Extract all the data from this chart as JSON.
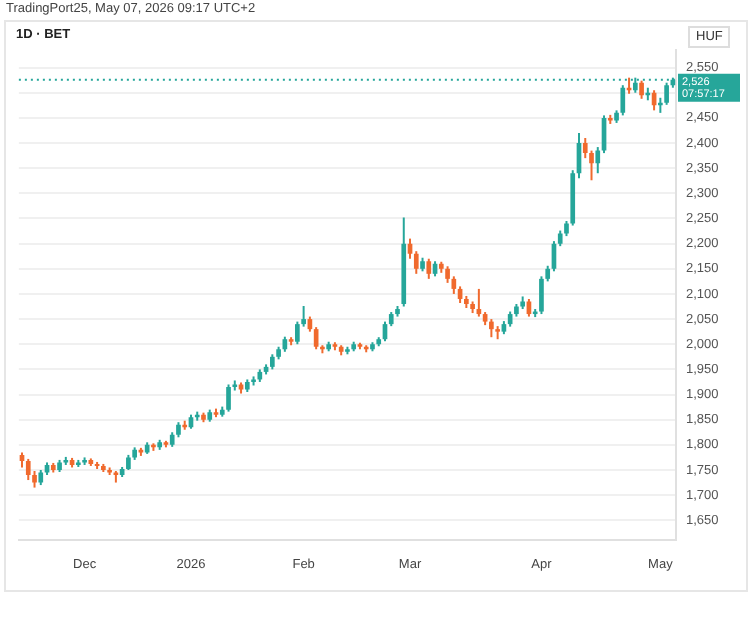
{
  "chart_data": {
    "type": "candlestick",
    "title": "1D · BET",
    "subtitle": "TradingPort25, May 07, 2026 09:17 UTC+2",
    "ylabel": "HUF",
    "annotations": [
      "07:57:17"
    ],
    "categories": [
      null,
      null,
      null,
      null,
      null,
      null,
      null,
      null,
      null,
      null,
      "Dec",
      null,
      null,
      null,
      null,
      null,
      null,
      null,
      null,
      null,
      null,
      null,
      null,
      null,
      null,
      null,
      null,
      "2026",
      null,
      null,
      null,
      null,
      null,
      null,
      null,
      null,
      null,
      null,
      null,
      null,
      null,
      null,
      null,
      null,
      null,
      "Feb",
      null,
      null,
      null,
      null,
      null,
      null,
      null,
      null,
      null,
      null,
      null,
      null,
      null,
      null,
      null,
      null,
      "Mar",
      null,
      null,
      null,
      null,
      null,
      null,
      null,
      null,
      null,
      null,
      null,
      null,
      null,
      null,
      null,
      null,
      null,
      null,
      null,
      null,
      "Apr",
      null,
      null,
      null,
      null,
      null,
      null,
      null,
      null,
      null,
      null,
      null,
      null,
      null,
      null,
      null,
      null,
      null,
      null,
      "May",
      null,
      null
    ],
    "ohlc": [
      [
        1780,
        1785,
        1755,
        1768
      ],
      [
        1768,
        1772,
        1730,
        1740
      ],
      [
        1740,
        1748,
        1715,
        1725
      ],
      [
        1725,
        1750,
        1720,
        1745
      ],
      [
        1745,
        1765,
        1740,
        1760
      ],
      [
        1760,
        1764,
        1745,
        1750
      ],
      [
        1750,
        1770,
        1746,
        1765
      ],
      [
        1765,
        1776,
        1760,
        1770
      ],
      [
        1770,
        1774,
        1755,
        1760
      ],
      [
        1760,
        1770,
        1756,
        1765
      ],
      [
        1765,
        1775,
        1760,
        1770
      ],
      [
        1770,
        1773,
        1758,
        1762
      ],
      [
        1762,
        1766,
        1752,
        1758
      ],
      [
        1758,
        1762,
        1746,
        1750
      ],
      [
        1750,
        1755,
        1740,
        1745
      ],
      [
        1745,
        1748,
        1725,
        1740
      ],
      [
        1740,
        1756,
        1736,
        1752
      ],
      [
        1752,
        1780,
        1750,
        1775
      ],
      [
        1775,
        1795,
        1770,
        1790
      ],
      [
        1790,
        1794,
        1778,
        1785
      ],
      [
        1785,
        1805,
        1782,
        1800
      ],
      [
        1800,
        1803,
        1788,
        1795
      ],
      [
        1795,
        1810,
        1790,
        1805
      ],
      [
        1805,
        1808,
        1795,
        1800
      ],
      [
        1800,
        1825,
        1796,
        1820
      ],
      [
        1820,
        1845,
        1815,
        1840
      ],
      [
        1840,
        1848,
        1830,
        1835
      ],
      [
        1835,
        1860,
        1832,
        1855
      ],
      [
        1855,
        1866,
        1848,
        1860
      ],
      [
        1860,
        1864,
        1845,
        1850
      ],
      [
        1850,
        1870,
        1846,
        1865
      ],
      [
        1865,
        1872,
        1855,
        1860
      ],
      [
        1860,
        1876,
        1856,
        1870
      ],
      [
        1870,
        1920,
        1866,
        1915
      ],
      [
        1915,
        1928,
        1908,
        1920
      ],
      [
        1920,
        1924,
        1902,
        1910
      ],
      [
        1910,
        1930,
        1905,
        1925
      ],
      [
        1925,
        1936,
        1918,
        1930
      ],
      [
        1930,
        1950,
        1925,
        1945
      ],
      [
        1945,
        1960,
        1940,
        1955
      ],
      [
        1955,
        1980,
        1950,
        1975
      ],
      [
        1975,
        1995,
        1970,
        1990
      ],
      [
        1990,
        2015,
        1985,
        2010
      ],
      [
        2010,
        2014,
        1998,
        2005
      ],
      [
        2005,
        2045,
        2000,
        2040
      ],
      [
        2040,
        2076,
        2035,
        2050
      ],
      [
        2050,
        2055,
        2025,
        2030
      ],
      [
        2030,
        2034,
        1990,
        1995
      ],
      [
        1995,
        1998,
        1982,
        1990
      ],
      [
        1990,
        2005,
        1986,
        2000
      ],
      [
        2000,
        2004,
        1988,
        1995
      ],
      [
        1995,
        1998,
        1978,
        1985
      ],
      [
        1985,
        1995,
        1980,
        1990
      ],
      [
        1990,
        2005,
        1986,
        2000
      ],
      [
        2000,
        2003,
        1990,
        1995
      ],
      [
        1995,
        1998,
        1984,
        1990
      ],
      [
        1990,
        2004,
        1986,
        2000
      ],
      [
        2000,
        2014,
        1996,
        2010
      ],
      [
        2010,
        2045,
        2006,
        2040
      ],
      [
        2040,
        2064,
        2036,
        2060
      ],
      [
        2060,
        2076,
        2055,
        2070
      ],
      [
        2080,
        2252,
        2075,
        2200
      ],
      [
        2200,
        2210,
        2170,
        2180
      ],
      [
        2180,
        2185,
        2140,
        2150
      ],
      [
        2150,
        2172,
        2145,
        2165
      ],
      [
        2165,
        2170,
        2130,
        2140
      ],
      [
        2140,
        2165,
        2135,
        2160
      ],
      [
        2160,
        2164,
        2142,
        2150
      ],
      [
        2150,
        2155,
        2122,
        2130
      ],
      [
        2130,
        2135,
        2100,
        2110
      ],
      [
        2110,
        2115,
        2082,
        2090
      ],
      [
        2090,
        2096,
        2072,
        2080
      ],
      [
        2080,
        2085,
        2062,
        2070
      ],
      [
        2070,
        2110,
        2055,
        2060
      ],
      [
        2060,
        2064,
        2038,
        2045
      ],
      [
        2045,
        2050,
        2014,
        2030
      ],
      [
        2030,
        2036,
        2010,
        2025
      ],
      [
        2025,
        2046,
        2020,
        2040
      ],
      [
        2040,
        2065,
        2035,
        2060
      ],
      [
        2060,
        2080,
        2055,
        2075
      ],
      [
        2075,
        2095,
        2070,
        2085
      ],
      [
        2085,
        2090,
        2055,
        2060
      ],
      [
        2060,
        2070,
        2054,
        2065
      ],
      [
        2065,
        2135,
        2060,
        2130
      ],
      [
        2130,
        2156,
        2125,
        2150
      ],
      [
        2150,
        2205,
        2145,
        2200
      ],
      [
        2200,
        2226,
        2195,
        2220
      ],
      [
        2220,
        2245,
        2215,
        2240
      ],
      [
        2240,
        2346,
        2236,
        2340
      ],
      [
        2340,
        2420,
        2330,
        2400
      ],
      [
        2400,
        2410,
        2370,
        2380
      ],
      [
        2380,
        2385,
        2326,
        2360
      ],
      [
        2360,
        2392,
        2340,
        2385
      ],
      [
        2385,
        2455,
        2380,
        2450
      ],
      [
        2450,
        2456,
        2438,
        2445
      ],
      [
        2445,
        2465,
        2440,
        2460
      ],
      [
        2460,
        2515,
        2455,
        2510
      ],
      [
        2510,
        2530,
        2498,
        2505
      ],
      [
        2505,
        2530,
        2500,
        2520
      ],
      [
        2520,
        2524,
        2488,
        2495
      ],
      [
        2495,
        2510,
        2485,
        2500
      ],
      [
        2500,
        2505,
        2465,
        2475
      ],
      [
        2475,
        2490,
        2460,
        2480
      ],
      [
        2480,
        2520,
        2476,
        2515
      ],
      [
        2515,
        2530,
        2510,
        2526
      ]
    ],
    "colors": [
      "#f06a2e",
      "#f06a2e",
      "#f06a2e",
      "#26a69a",
      "#26a69a",
      "#f06a2e",
      "#26a69a",
      "#26a69a",
      "#f06a2e",
      "#26a69a",
      "#26a69a",
      "#f06a2e",
      "#f06a2e",
      "#f06a2e",
      "#f06a2e",
      "#f06a2e",
      "#26a69a",
      "#26a69a",
      "#26a69a",
      "#f06a2e",
      "#26a69a",
      "#f06a2e",
      "#26a69a",
      "#f06a2e",
      "#26a69a",
      "#26a69a",
      "#f06a2e",
      "#26a69a",
      "#26a69a",
      "#f06a2e",
      "#26a69a",
      "#f06a2e",
      "#26a69a",
      "#26a69a",
      "#26a69a",
      "#f06a2e",
      "#26a69a",
      "#26a69a",
      "#26a69a",
      "#26a69a",
      "#26a69a",
      "#26a69a",
      "#26a69a",
      "#f06a2e",
      "#26a69a",
      "#26a69a",
      "#f06a2e",
      "#f06a2e",
      "#f06a2e",
      "#26a69a",
      "#f06a2e",
      "#f06a2e",
      "#26a69a",
      "#26a69a",
      "#f06a2e",
      "#f06a2e",
      "#26a69a",
      "#26a69a",
      "#26a69a",
      "#26a69a",
      "#26a69a",
      "#26a69a",
      "#f06a2e",
      "#f06a2e",
      "#26a69a",
      "#f06a2e",
      "#26a69a",
      "#f06a2e",
      "#f06a2e",
      "#f06a2e",
      "#f06a2e",
      "#f06a2e",
      "#f06a2e",
      "#f06a2e",
      "#f06a2e",
      "#f06a2e",
      "#f06a2e",
      "#26a69a",
      "#26a69a",
      "#26a69a",
      "#26a69a",
      "#f06a2e",
      "#26a69a",
      "#26a69a",
      "#26a69a",
      "#26a69a",
      "#26a69a",
      "#26a69a",
      "#26a69a",
      "#26a69a",
      "#f06a2e",
      "#f06a2e",
      "#26a69a",
      "#26a69a",
      "#f06a2e",
      "#26a69a",
      "#26a69a",
      "#f06a2e",
      "#26a69a",
      "#f06a2e",
      "#26a69a",
      "#f06a2e",
      "#26a69a",
      "#26a69a",
      "#26a69a"
    ],
    "ylim": [
      1610,
      2585
    ],
    "yticks": [
      {
        "value": 1650,
        "label": "1,650"
      },
      {
        "value": 1700,
        "label": "1,700"
      },
      {
        "value": 1750,
        "label": "1,750"
      },
      {
        "value": 1800,
        "label": "1,800"
      },
      {
        "value": 1850,
        "label": "1,850"
      },
      {
        "value": 1900,
        "label": "1,900"
      },
      {
        "value": 1950,
        "label": "1,950"
      },
      {
        "value": 2000,
        "label": "2,000"
      },
      {
        "value": 2050,
        "label": "2,050"
      },
      {
        "value": 2100,
        "label": "2,100"
      },
      {
        "value": 2150,
        "label": "2,150"
      },
      {
        "value": 2200,
        "label": "2,200"
      },
      {
        "value": 2250,
        "label": "2,250"
      },
      {
        "value": 2300,
        "label": "2,300"
      },
      {
        "value": 2350,
        "label": "2,350"
      },
      {
        "value": 2400,
        "label": "2,400"
      },
      {
        "value": 2450,
        "label": "2,450"
      },
      {
        "value": 2500,
        "label": null
      },
      {
        "value": 2550,
        "label": "2,550"
      }
    ],
    "ref_lines": [
      {
        "axis": "y",
        "value": 2526,
        "label": "2,526",
        "color": "#26a69a",
        "line_style": "dotted"
      }
    ],
    "grid": "y",
    "legend": false
  }
}
